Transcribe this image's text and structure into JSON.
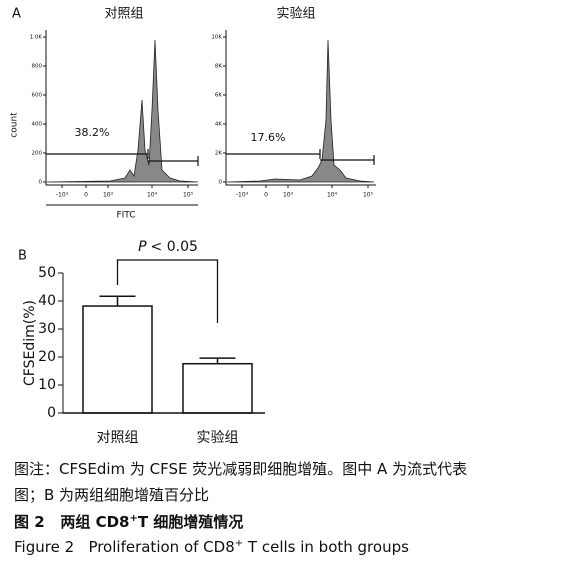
{
  "panel_a": {
    "label": "A",
    "x_label": "FITC",
    "y_label": "count",
    "plots": [
      {
        "title": "对照组",
        "gate_label": "38.2%",
        "yticks": [
          "0",
          "200",
          "400",
          "600",
          "800",
          "1.0K"
        ],
        "xticks": [
          "-10³",
          "0",
          "10³",
          "10⁴",
          "10⁵"
        ]
      },
      {
        "title": "实验组",
        "gate_label": "17.6%",
        "yticks": [
          "0",
          "2K",
          "4K",
          "6K",
          "8K",
          "10K"
        ],
        "xticks": [
          "-10³",
          "0",
          "10³",
          "10⁴",
          "10⁵"
        ]
      }
    ]
  },
  "chart_data": {
    "type": "bar",
    "panel_label": "B",
    "y_label": "CFSEdim(%)",
    "categories": [
      "对照组",
      "实验组"
    ],
    "values": [
      38.2,
      17.6
    ],
    "errors": [
      3.5,
      2
    ],
    "ylim": [
      0,
      50
    ],
    "yticks": [
      0,
      10,
      20,
      30,
      40,
      50
    ],
    "significance": {
      "symbol": "P",
      "text": "< 0.05"
    }
  },
  "caption": {
    "note": "图注：CFSEdim 为 CFSE 荧光减弱即细胞增殖。图中 A 为流式代表",
    "note_cont": "图；B 为两组细胞增殖百分比",
    "cn_number": "图 2",
    "cn_title_a": "两组 CD8",
    "cn_sup": "+",
    "cn_title_b": "T 细胞增殖情况",
    "en_number": "Figure 2",
    "en_title_a": "Proliferation of CD8",
    "en_sup": "+",
    "en_title_b": "T cells in both groups"
  }
}
